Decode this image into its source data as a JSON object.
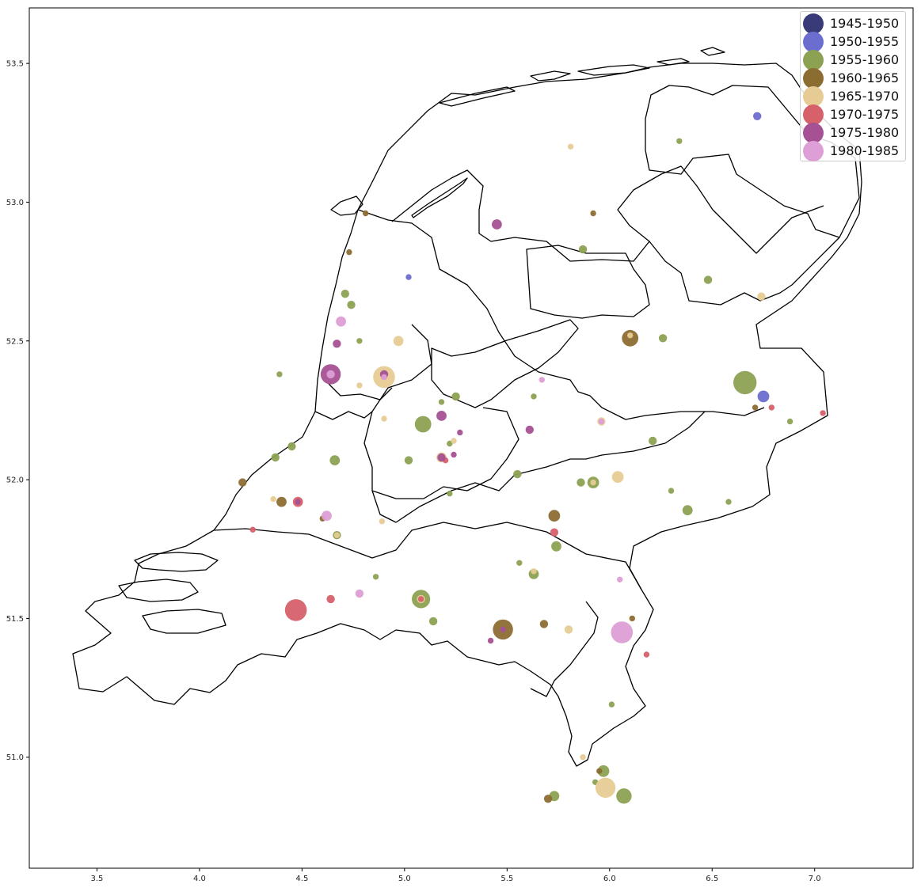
{
  "chart_data": {
    "type": "scatter",
    "xlim": [
      3.17,
      7.48
    ],
    "ylim": [
      50.6,
      53.7
    ],
    "x_ticks": [
      3.5,
      4.0,
      4.5,
      5.0,
      5.5,
      6.0,
      6.5,
      7.0
    ],
    "y_ticks": [
      51.0,
      51.5,
      52.0,
      52.5,
      53.0,
      53.5
    ],
    "x_tick_labels": [
      "3.5",
      "4.0",
      "4.5",
      "5.0",
      "5.5",
      "6.0",
      "6.5",
      "7.0"
    ],
    "y_tick_labels": [
      "51.0",
      "51.5",
      "52.0",
      "52.5",
      "53.0",
      "53.5"
    ],
    "grid": false,
    "legend_position": "top-right",
    "series": [
      {
        "name": "1945-1950",
        "color": "#393b79",
        "points": []
      },
      {
        "name": "1950-1955",
        "color": "#6b6ecf",
        "points": [
          [
            6.72,
            53.31,
            1
          ],
          [
            5.02,
            52.73,
            0.5
          ],
          [
            6.75,
            52.3,
            2
          ]
        ]
      },
      {
        "name": "1955-1960",
        "color": "#8ca252",
        "points": [
          [
            6.34,
            53.22,
            0.5
          ],
          [
            5.87,
            52.83,
            1
          ],
          [
            6.48,
            52.72,
            1
          ],
          [
            4.71,
            52.67,
            1
          ],
          [
            4.74,
            52.63,
            1
          ],
          [
            6.26,
            52.51,
            1
          ],
          [
            4.78,
            52.5,
            0.5
          ],
          [
            6.66,
            52.35,
            8
          ],
          [
            5.18,
            52.28,
            0.5
          ],
          [
            5.25,
            52.3,
            1
          ],
          [
            5.63,
            52.3,
            0.5
          ],
          [
            5.09,
            52.2,
            4
          ],
          [
            6.21,
            52.14,
            1
          ],
          [
            4.45,
            52.12,
            1
          ],
          [
            5.22,
            52.13,
            0.5
          ],
          [
            4.37,
            52.08,
            1
          ],
          [
            4.66,
            52.07,
            1.5
          ],
          [
            5.02,
            52.07,
            1
          ],
          [
            5.55,
            52.02,
            1
          ],
          [
            5.86,
            51.99,
            1
          ],
          [
            5.92,
            51.99,
            2
          ],
          [
            6.3,
            51.96,
            0.5
          ],
          [
            6.58,
            51.92,
            0.5
          ],
          [
            5.22,
            51.95,
            0.5
          ],
          [
            6.38,
            51.89,
            1.5
          ],
          [
            6.88,
            52.21,
            0.5
          ],
          [
            4.67,
            51.8,
            1
          ],
          [
            5.74,
            51.76,
            1.5
          ],
          [
            5.56,
            51.7,
            0.5
          ],
          [
            5.63,
            51.66,
            1.5
          ],
          [
            4.86,
            51.65,
            0.5
          ],
          [
            5.08,
            51.57,
            5
          ],
          [
            5.14,
            51.49,
            1
          ],
          [
            6.01,
            51.19,
            0.5
          ],
          [
            5.97,
            50.95,
            2
          ],
          [
            6.07,
            50.86,
            3.5
          ],
          [
            5.73,
            50.86,
            1.5
          ],
          [
            5.93,
            50.91,
            0.5
          ],
          [
            4.39,
            52.38,
            0.5
          ]
        ]
      },
      {
        "name": "1960-1965",
        "color": "#8c6d31",
        "points": [
          [
            5.92,
            52.96,
            0.5
          ],
          [
            4.73,
            52.82,
            0.5
          ],
          [
            6.1,
            52.51,
            4
          ],
          [
            6.71,
            52.26,
            0.5
          ],
          [
            4.21,
            51.99,
            1
          ],
          [
            4.4,
            51.92,
            1.5
          ],
          [
            4.6,
            51.86,
            0.5
          ],
          [
            5.73,
            51.87,
            2
          ],
          [
            5.48,
            51.46,
            6
          ],
          [
            5.68,
            51.48,
            1
          ],
          [
            5.7,
            50.85,
            1
          ],
          [
            5.95,
            50.95,
            0.5
          ],
          [
            6.11,
            51.5,
            0.5
          ],
          [
            4.81,
            52.96,
            0.5
          ]
        ]
      },
      {
        "name": "1965-1970",
        "color": "#e7cb94",
        "points": [
          [
            5.81,
            53.2,
            0.5
          ],
          [
            6.74,
            52.66,
            1
          ],
          [
            4.97,
            52.5,
            1.5
          ],
          [
            4.9,
            52.37,
            7
          ],
          [
            6.1,
            52.52,
            0.5
          ],
          [
            4.78,
            52.34,
            0.5
          ],
          [
            4.9,
            52.22,
            0.5
          ],
          [
            5.96,
            52.21,
            1
          ],
          [
            5.18,
            52.08,
            1.5
          ],
          [
            5.24,
            52.14,
            0.5
          ],
          [
            6.04,
            52.01,
            2
          ],
          [
            4.36,
            51.93,
            0.5
          ],
          [
            4.89,
            51.85,
            0.5
          ],
          [
            4.67,
            51.8,
            0.5
          ],
          [
            5.8,
            51.46,
            1
          ],
          [
            5.98,
            50.89,
            6
          ],
          [
            5.87,
            51.0,
            0.5
          ],
          [
            5.92,
            51.99,
            0.5
          ],
          [
            5.63,
            51.67,
            0.5
          ],
          [
            5.08,
            51.57,
            1
          ]
        ]
      },
      {
        "name": "1970-1975",
        "color": "#d6616b",
        "points": [
          [
            4.47,
            51.53,
            7
          ],
          [
            4.64,
            51.57,
            1
          ],
          [
            4.48,
            51.92,
            1.5
          ],
          [
            4.26,
            51.82,
            0.5
          ],
          [
            5.73,
            51.81,
            1
          ],
          [
            6.18,
            51.37,
            0.5
          ],
          [
            7.04,
            52.24,
            0.5
          ],
          [
            5.2,
            52.07,
            0.5
          ],
          [
            4.9,
            52.37,
            0.5
          ],
          [
            5.08,
            51.57,
            0.5
          ],
          [
            6.79,
            52.26,
            0.5
          ]
        ]
      },
      {
        "name": "1975-1980",
        "color": "#a55194",
        "points": [
          [
            5.45,
            52.92,
            1.5
          ],
          [
            4.64,
            52.38,
            6
          ],
          [
            4.9,
            52.38,
            1
          ],
          [
            4.67,
            52.49,
            1
          ],
          [
            5.18,
            52.23,
            1.5
          ],
          [
            5.61,
            52.18,
            1
          ],
          [
            5.27,
            52.17,
            0.5
          ],
          [
            5.24,
            52.09,
            0.5
          ],
          [
            5.18,
            52.08,
            1
          ],
          [
            5.42,
            51.42,
            0.5
          ],
          [
            5.48,
            51.46,
            0.5
          ],
          [
            4.48,
            51.92,
            0.5
          ]
        ]
      },
      {
        "name": "1980-1985",
        "color": "#de9ed6",
        "points": [
          [
            4.69,
            52.57,
            1.5
          ],
          [
            4.64,
            52.38,
            1
          ],
          [
            5.96,
            52.21,
            0.5
          ],
          [
            5.67,
            52.36,
            0.5
          ],
          [
            4.62,
            51.87,
            1.5
          ],
          [
            4.78,
            51.59,
            1
          ],
          [
            6.06,
            51.45,
            7
          ],
          [
            6.05,
            51.64,
            0.5
          ],
          [
            4.9,
            52.37,
            0.5
          ]
        ]
      }
    ]
  }
}
